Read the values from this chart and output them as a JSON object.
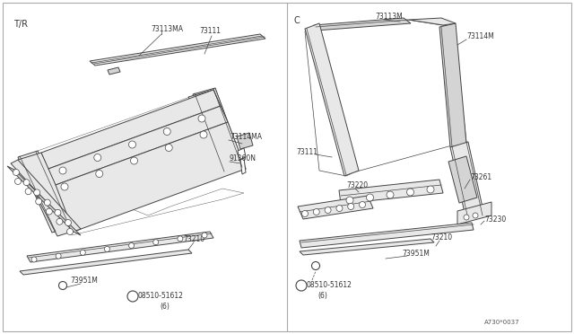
{
  "bg_color": "#ffffff",
  "line_color": "#555555",
  "dk": "#444444",
  "title": "A730*0037",
  "left_label": "T/R",
  "right_label": "C",
  "fill_light": "#e8e8e8",
  "fill_mid": "#d4d4d4",
  "fill_dark": "#c0c0c0"
}
